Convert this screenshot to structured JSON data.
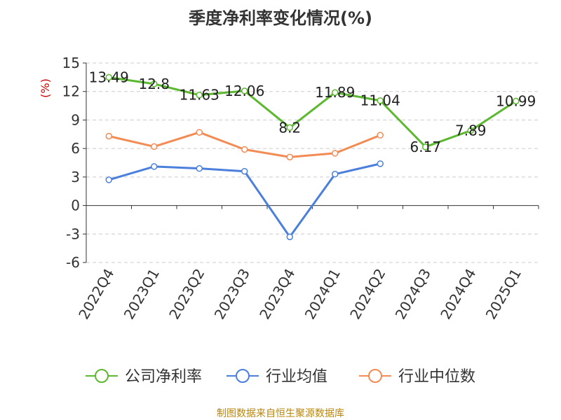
{
  "chart_data": {
    "type": "line",
    "title": "季度净利率变化情况(%)",
    "ylabel": "(%)",
    "xlabel": "",
    "ylim": [
      -6,
      15
    ],
    "yticks": [
      15,
      12,
      9,
      6,
      3,
      0,
      -3,
      -6
    ],
    "categories": [
      "2022Q4",
      "2023Q1",
      "2023Q2",
      "2023Q3",
      "2023Q4",
      "2024Q1",
      "2024Q2",
      "2024Q3",
      "2024Q4",
      "2025Q1"
    ],
    "grid": true,
    "legend_position": "bottom",
    "series": [
      {
        "name": "公司净利率",
        "color": "#5cb82f",
        "show_labels": true,
        "values": [
          13.49,
          12.8,
          11.63,
          12.06,
          8.2,
          11.89,
          11.04,
          6.17,
          7.89,
          10.99
        ]
      },
      {
        "name": "行业均值",
        "color": "#4a7fdb",
        "show_labels": false,
        "values": [
          2.7,
          4.1,
          3.9,
          3.6,
          -3.3,
          3.3,
          4.4,
          null,
          null,
          null
        ]
      },
      {
        "name": "行业中位数",
        "color": "#f28b54",
        "show_labels": false,
        "values": [
          7.3,
          6.2,
          7.7,
          5.9,
          5.1,
          5.5,
          7.4,
          null,
          null,
          null
        ]
      }
    ]
  },
  "source_note": "制图数据来自恒生聚源数据库"
}
